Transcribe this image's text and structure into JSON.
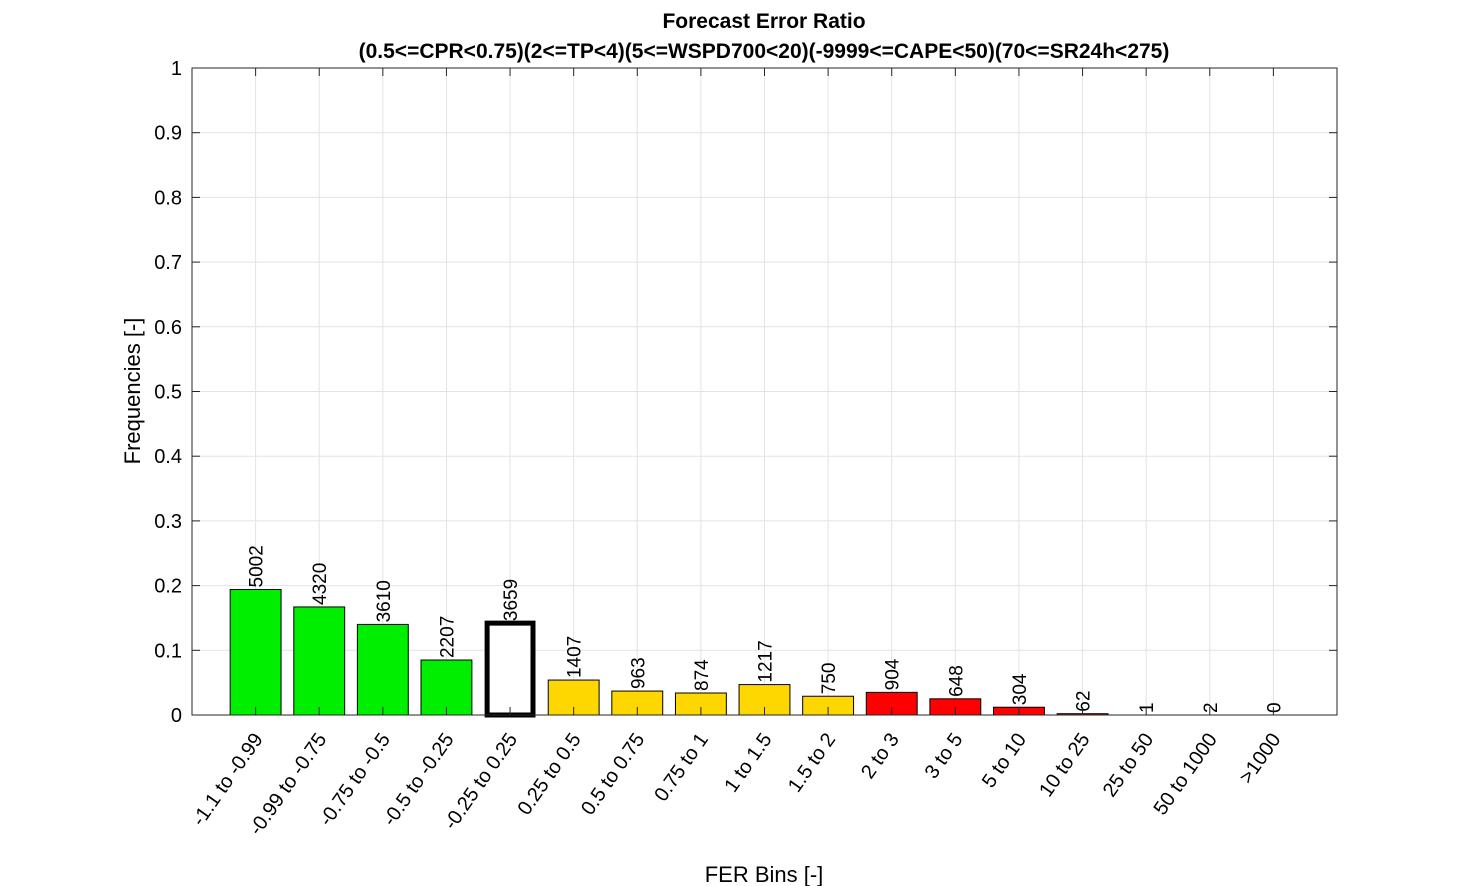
{
  "chart_data": {
    "type": "bar",
    "title": "Forecast Error Ratio",
    "subtitle": "(0.5<=CPR<0.75)(2<=TP<4)(5<=WSPD700<20)(-9999<=CAPE<50)(70<=SR24h<275)",
    "xlabel": "FER Bins [-]",
    "ylabel": "Frequencies [-]",
    "ylim": [
      0,
      1
    ],
    "yticks": [
      "0",
      "0.1",
      "0.2",
      "0.3",
      "0.4",
      "0.5",
      "0.6",
      "0.7",
      "0.8",
      "0.9",
      "1"
    ],
    "grid": true,
    "categories": [
      "-1.1 to -0.99",
      "-0.99 to -0.75",
      "-0.75 to -0.5",
      "-0.5 to -0.25",
      "-0.25 to 0.25",
      "0.25 to 0.5",
      "0.5 to 0.75",
      "0.75 to 1",
      "1 to 1.5",
      "1.5 to 2",
      "2 to 3",
      "3 to 5",
      "5 to 10",
      "10 to 25",
      "25 to 50",
      "50 to 1000",
      ">1000"
    ],
    "values": [
      0.194,
      0.167,
      0.14,
      0.085,
      0.142,
      0.054,
      0.037,
      0.034,
      0.047,
      0.029,
      0.035,
      0.025,
      0.012,
      0.002,
      0.0,
      0.0,
      0.0
    ],
    "counts": [
      "5002",
      "4320",
      "3610",
      "2207",
      "3659",
      "1407",
      "963",
      "874",
      "1217",
      "750",
      "904",
      "648",
      "304",
      "62",
      "1",
      "2",
      "0"
    ],
    "bar_colors": [
      "#00ee00",
      "#00ee00",
      "#00ee00",
      "#00ee00",
      "#ffffff",
      "#ffd700",
      "#ffd700",
      "#ffd700",
      "#ffd700",
      "#ffd700",
      "#ff0000",
      "#ff0000",
      "#ff0000",
      "#ff0000",
      "#ff0000",
      "#ff0000",
      "#ff0000"
    ],
    "highlighted_bin": "-0.25 to 0.25"
  }
}
